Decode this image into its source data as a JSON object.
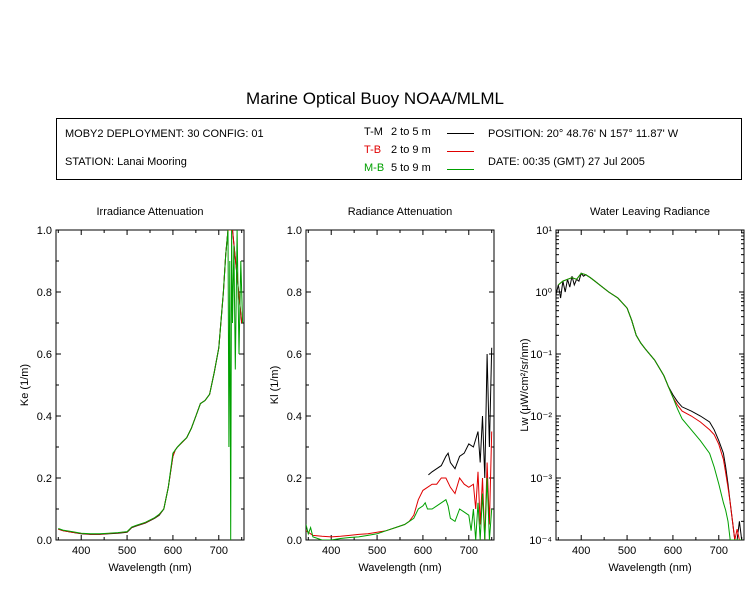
{
  "title": "Marine Optical Buoy NOAA/MLML",
  "info": {
    "deployment": "MOBY2 DEPLOYMENT: 30 CONFIG: 01",
    "station": "STATION: Lanai Mooring",
    "position": "POSITION: 20° 48.76' N   157° 11.87' W",
    "date": "DATE: 00:35 (GMT) 27 Jul 2005"
  },
  "legend": [
    {
      "code": "T-M",
      "range": "2 to 5  m",
      "color": "#000000"
    },
    {
      "code": "T-B",
      "range": "2 to 9  m",
      "color": "#e00000"
    },
    {
      "code": "M-B",
      "range": "5 to 9  m",
      "color": "#00a000"
    }
  ],
  "chart_data": [
    {
      "type": "line",
      "title": "Irradiance Attenuation",
      "xlabel": "Wavelength (nm)",
      "ylabel": "Ke  (1/m)",
      "xlim": [
        345,
        755
      ],
      "ylim": [
        0,
        1.0
      ],
      "xticks": [
        400,
        500,
        600,
        700
      ],
      "xtick_labels": [
        "400",
        "500",
        "600",
        "700"
      ],
      "yticks": [
        0,
        0.2,
        0.4,
        0.6,
        0.8,
        1.0
      ],
      "ytick_labels": [
        "0.0",
        "0.2",
        "0.4",
        "0.6",
        "0.8",
        "1.0"
      ],
      "series": [
        {
          "name": "T-M",
          "color": "#000000",
          "x": [
            350,
            360,
            380,
            400,
            420,
            440,
            460,
            480,
            500,
            510,
            520,
            540,
            560,
            570,
            580,
            590,
            600,
            605,
            610,
            620,
            630,
            640,
            650,
            660,
            670,
            680,
            690,
            700,
            710,
            715,
            720,
            730,
            740,
            750
          ],
          "y": [
            0.035,
            0.03,
            0.025,
            0.02,
            0.018,
            0.018,
            0.02,
            0.022,
            0.025,
            0.04,
            0.045,
            0.055,
            0.07,
            0.08,
            0.1,
            0.17,
            0.27,
            0.29,
            0.3,
            0.315,
            0.33,
            0.36,
            0.4,
            0.44,
            0.45,
            0.47,
            0.54,
            0.62,
            0.8,
            0.92,
            1.0,
            1.0,
            0.85,
            0.7
          ]
        },
        {
          "name": "T-B",
          "color": "#e00000",
          "x": [
            350,
            360,
            380,
            400,
            420,
            440,
            460,
            480,
            500,
            510,
            520,
            540,
            560,
            570,
            580,
            590,
            600,
            605,
            610,
            620,
            630,
            640,
            650,
            660,
            670,
            680,
            690,
            700,
            710,
            715,
            720,
            730,
            740,
            750
          ],
          "y": [
            0.035,
            0.03,
            0.025,
            0.021,
            0.019,
            0.019,
            0.021,
            0.023,
            0.026,
            0.041,
            0.046,
            0.056,
            0.071,
            0.082,
            0.1,
            0.17,
            0.27,
            0.29,
            0.3,
            0.315,
            0.33,
            0.36,
            0.4,
            0.44,
            0.45,
            0.47,
            0.54,
            0.62,
            0.8,
            0.92,
            1.0,
            1.0,
            0.85,
            0.7
          ]
        },
        {
          "name": "M-B",
          "color": "#00a000",
          "x": [
            350,
            360,
            380,
            400,
            420,
            440,
            460,
            480,
            500,
            510,
            520,
            540,
            560,
            570,
            580,
            590,
            600,
            605,
            610,
            620,
            630,
            640,
            650,
            660,
            670,
            680,
            690,
            700,
            710,
            715,
            720,
            722,
            724,
            726,
            728,
            730,
            733,
            736,
            740,
            744,
            748,
            752
          ],
          "y": [
            0.037,
            0.032,
            0.027,
            0.022,
            0.02,
            0.02,
            0.022,
            0.024,
            0.027,
            0.042,
            0.047,
            0.057,
            0.072,
            0.083,
            0.1,
            0.17,
            0.28,
            0.29,
            0.3,
            0.316,
            0.33,
            0.36,
            0.4,
            0.44,
            0.45,
            0.47,
            0.54,
            0.62,
            0.8,
            0.92,
            1.0,
            0.3,
            0.9,
            0.0,
            1.0,
            0.7,
            0.95,
            0.55,
            1.0,
            0.6,
            0.9,
            0.7
          ]
        }
      ]
    },
    {
      "type": "line",
      "title": "Radiance Attenuation",
      "xlabel": "Wavelength (nm)",
      "ylabel": "Kl  (1/m)",
      "xlim": [
        345,
        755
      ],
      "ylim": [
        0,
        1.0
      ],
      "xticks": [
        400,
        500,
        600,
        700
      ],
      "xtick_labels": [
        "400",
        "500",
        "600",
        "700"
      ],
      "yticks": [
        0,
        0.2,
        0.4,
        0.6,
        0.8,
        1.0
      ],
      "ytick_labels": [
        "0.0",
        "0.2",
        "0.4",
        "0.6",
        "0.8",
        "1.0"
      ],
      "series": [
        {
          "name": "T-M",
          "color": "#000000",
          "x": [
            612,
            620,
            630,
            640,
            650,
            655,
            660,
            670,
            680,
            690,
            700,
            710,
            720,
            725,
            730,
            735,
            740,
            745,
            750
          ],
          "y": [
            0.21,
            0.22,
            0.23,
            0.24,
            0.27,
            0.28,
            0.25,
            0.23,
            0.27,
            0.28,
            0.31,
            0.3,
            0.35,
            0.25,
            0.4,
            0.2,
            0.6,
            0.3,
            0.62
          ]
        },
        {
          "name": "T-B",
          "color": "#e00000",
          "x": [
            345,
            360,
            380,
            400,
            420,
            440,
            460,
            480,
            500,
            520,
            540,
            560,
            570,
            580,
            590,
            600,
            610,
            620,
            630,
            640,
            650,
            660,
            670,
            680,
            690,
            700,
            710,
            715,
            720,
            725,
            730,
            735,
            740,
            745,
            750
          ],
          "y": [
            0.03,
            0.015,
            0.012,
            0.01,
            0.012,
            0.015,
            0.018,
            0.02,
            0.025,
            0.03,
            0.04,
            0.05,
            0.06,
            0.08,
            0.13,
            0.16,
            0.17,
            0.18,
            0.18,
            0.2,
            0.2,
            0.17,
            0.15,
            0.2,
            0.18,
            0.17,
            0.18,
            0.1,
            0.22,
            0.05,
            0.2,
            0.0,
            0.25,
            0.05,
            0.35
          ]
        },
        {
          "name": "M-B",
          "color": "#00a000",
          "x": [
            345,
            350,
            355,
            360,
            380,
            400,
            420,
            440,
            460,
            480,
            500,
            520,
            540,
            560,
            570,
            580,
            590,
            600,
            605,
            610,
            620,
            630,
            640,
            650,
            655,
            660,
            670,
            680,
            690,
            700,
            705,
            710,
            715,
            720,
            725,
            730,
            735,
            740,
            745,
            750
          ],
          "y": [
            0.05,
            0.02,
            0.04,
            0.01,
            0.0,
            0.0,
            0.005,
            0.008,
            0.01,
            0.015,
            0.02,
            0.03,
            0.04,
            0.05,
            0.06,
            0.07,
            0.1,
            0.11,
            0.12,
            0.1,
            0.1,
            0.11,
            0.12,
            0.13,
            0.11,
            0.07,
            0.06,
            0.1,
            0.09,
            0.08,
            0.03,
            0.1,
            0.0,
            0.12,
            0.0,
            0.15,
            0.0,
            0.2,
            0.0,
            0.1
          ]
        }
      ]
    },
    {
      "type": "line",
      "title": "Water Leaving Radiance",
      "xlabel": "Wavelength (nm)",
      "ylabel": "Lw  (μW/cm²/sr/nm)",
      "xlim": [
        345,
        755
      ],
      "ylim": [
        0.0001,
        10
      ],
      "yscale": "log",
      "xticks": [
        400,
        500,
        600,
        700
      ],
      "xtick_labels": [
        "400",
        "500",
        "600",
        "700"
      ],
      "yticks": [
        0.0001,
        0.001,
        0.01,
        0.1,
        1,
        10
      ],
      "ytick_labels": [
        "10⁻⁴",
        "10⁻³",
        "10⁻²",
        "10⁻¹",
        "10⁰",
        "10¹"
      ],
      "series": [
        {
          "name": "T-M",
          "color": "#000000",
          "x": [
            345,
            350,
            355,
            360,
            365,
            370,
            375,
            380,
            385,
            390,
            395,
            400,
            405,
            410,
            420,
            430,
            440,
            460,
            480,
            500,
            510,
            520,
            530,
            540,
            560,
            580,
            590,
            600,
            610,
            620,
            640,
            660,
            680,
            690,
            700,
            710,
            715,
            720,
            725,
            730,
            735,
            740,
            745,
            750
          ],
          "y": [
            0.9,
            1.3,
            0.8,
            1.5,
            1.0,
            1.6,
            1.2,
            1.8,
            1.3,
            1.6,
            1.5,
            2.0,
            1.8,
            1.9,
            1.7,
            1.5,
            1.3,
            1.0,
            0.8,
            0.55,
            0.35,
            0.2,
            0.15,
            0.12,
            0.08,
            0.045,
            0.03,
            0.022,
            0.017,
            0.014,
            0.012,
            0.01,
            0.008,
            0.006,
            0.004,
            0.0025,
            0.0015,
            0.0008,
            0.0004,
            0.0002,
            0.0001,
            0.0001,
            0.0002,
            0.0001
          ]
        },
        {
          "name": "T-B",
          "color": "#e00000",
          "x": [
            350,
            360,
            370,
            380,
            390,
            400,
            410,
            420,
            440,
            460,
            480,
            500,
            510,
            520,
            530,
            540,
            560,
            580,
            590,
            600,
            610,
            620,
            640,
            660,
            680,
            690,
            700,
            710,
            715,
            720,
            725,
            730,
            735,
            740,
            745,
            750
          ],
          "y": [
            1.3,
            1.5,
            1.6,
            1.7,
            1.6,
            2.0,
            1.9,
            1.7,
            1.3,
            1.0,
            0.8,
            0.55,
            0.35,
            0.2,
            0.15,
            0.12,
            0.08,
            0.045,
            0.03,
            0.02,
            0.015,
            0.012,
            0.01,
            0.008,
            0.006,
            0.005,
            0.0035,
            0.002,
            0.0012,
            0.0007,
            0.0004,
            0.0002,
            0.0001,
            0.00015,
            0.0001,
            0.0001
          ]
        },
        {
          "name": "M-B",
          "color": "#00a000",
          "x": [
            350,
            360,
            370,
            380,
            390,
            400,
            410,
            420,
            440,
            460,
            480,
            500,
            510,
            520,
            530,
            540,
            560,
            580,
            590,
            600,
            610,
            620,
            640,
            660,
            680,
            690,
            700,
            710,
            715,
            720,
            725,
            730,
            735,
            740,
            745,
            750
          ],
          "y": [
            1.3,
            1.5,
            1.6,
            1.7,
            1.6,
            2.0,
            1.9,
            1.7,
            1.3,
            1.0,
            0.8,
            0.55,
            0.35,
            0.2,
            0.15,
            0.12,
            0.08,
            0.045,
            0.03,
            0.02,
            0.013,
            0.009,
            0.006,
            0.004,
            0.0025,
            0.0015,
            0.0008,
            0.0004,
            0.0003,
            0.0002,
            0.0001,
            0.0001,
            0.0001,
            0.0001,
            0.0001,
            0.0001
          ]
        }
      ]
    }
  ]
}
